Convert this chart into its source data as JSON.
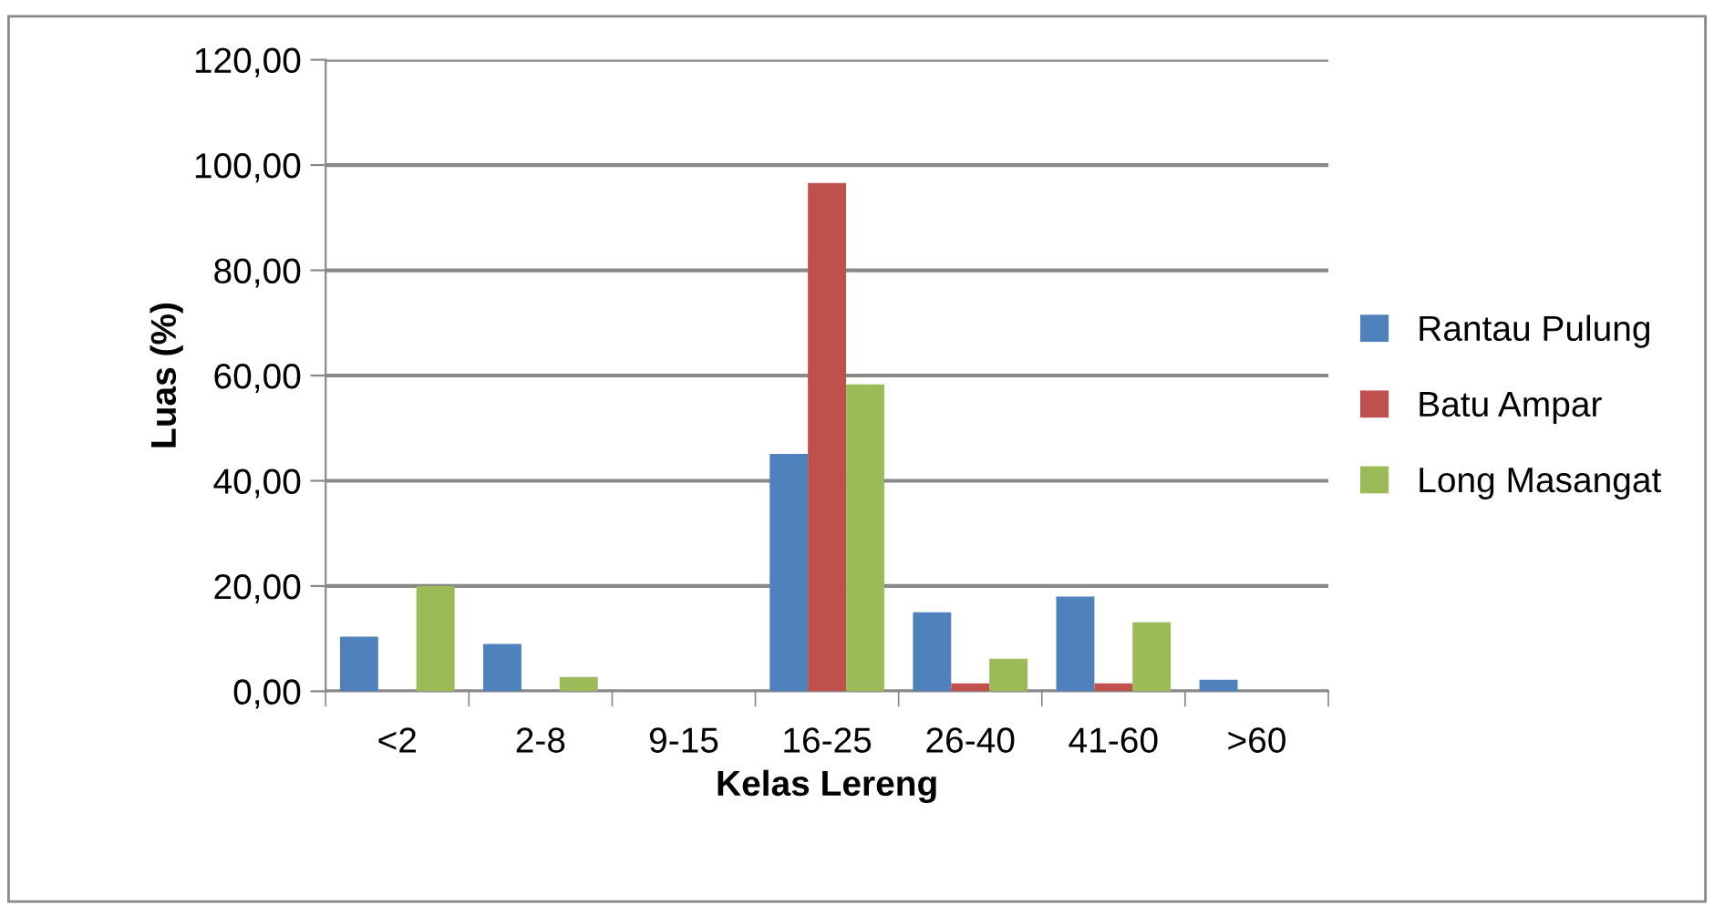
{
  "chart_data": {
    "type": "bar",
    "xlabel": "Kelas Lereng",
    "ylabel": "Luas (%)",
    "categories": [
      "<2",
      "2-8",
      "9-15",
      "16-25",
      "26-40",
      "41-60",
      ">60"
    ],
    "series": [
      {
        "name": "Rantau Pulung",
        "color": "#4f81bd",
        "values": [
          10.4,
          9.0,
          0,
          45.1,
          15.0,
          18.0,
          2.2
        ]
      },
      {
        "name": "Batu Ampar",
        "color": "#c0504d",
        "values": [
          0,
          0,
          0,
          96.6,
          1.5,
          1.5,
          0
        ]
      },
      {
        "name": "Long Masangat",
        "color": "#9bbb59",
        "values": [
          20.0,
          2.7,
          0,
          58.3,
          6.2,
          13.1,
          0
        ]
      }
    ],
    "ylim": [
      0,
      120
    ],
    "yticks": [
      {
        "value": 0,
        "label": "0,00"
      },
      {
        "value": 20,
        "label": "20,00"
      },
      {
        "value": 40,
        "label": "40,00"
      },
      {
        "value": 60,
        "label": "60,00"
      },
      {
        "value": 80,
        "label": "80,00"
      },
      {
        "value": 100,
        "label": "100,00"
      },
      {
        "value": 120,
        "label": "120,00"
      }
    ],
    "grid": "y",
    "legend": "right"
  }
}
